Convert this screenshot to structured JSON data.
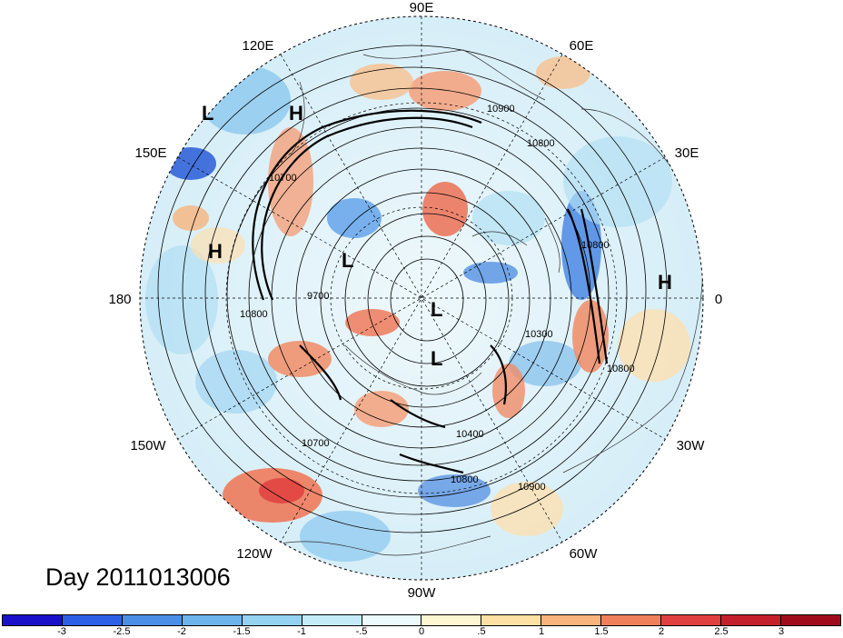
{
  "title": "Day 2011013006",
  "lon_labels": {
    "top": "90E",
    "top_left": "120E",
    "top_right": "60E",
    "upper_left": "150E",
    "upper_right": "30E",
    "left": "180",
    "right": "0",
    "lower_left": "150W",
    "lower_right": "30W",
    "bottom_left": "120W",
    "bottom_right": "60W",
    "bottom": "90W"
  },
  "pressure_centers": [
    "L",
    "H",
    "H",
    "L",
    "L",
    "L",
    "H"
  ],
  "contour_labels": [
    "10900",
    "10800",
    "10700",
    "9700",
    "10300",
    "10800",
    "10400",
    "10700",
    "10800",
    "10900",
    "10800",
    "10800"
  ],
  "colorbar": {
    "ticks": [
      "-3",
      "-2.5",
      "-2",
      "-1.5",
      "-1",
      "-.5",
      "0",
      ".5",
      "1",
      "1.5",
      "2",
      "2.5",
      "3"
    ],
    "colors": [
      "#1a10c8",
      "#2c5fe6",
      "#4a8ee8",
      "#6db4ec",
      "#94d2f2",
      "#c4ecf8",
      "#ecfafe",
      "#fdf6d0",
      "#fce0a4",
      "#f8b47c",
      "#f0805c",
      "#e04040",
      "#c4202c",
      "#a00c1c"
    ]
  }
}
